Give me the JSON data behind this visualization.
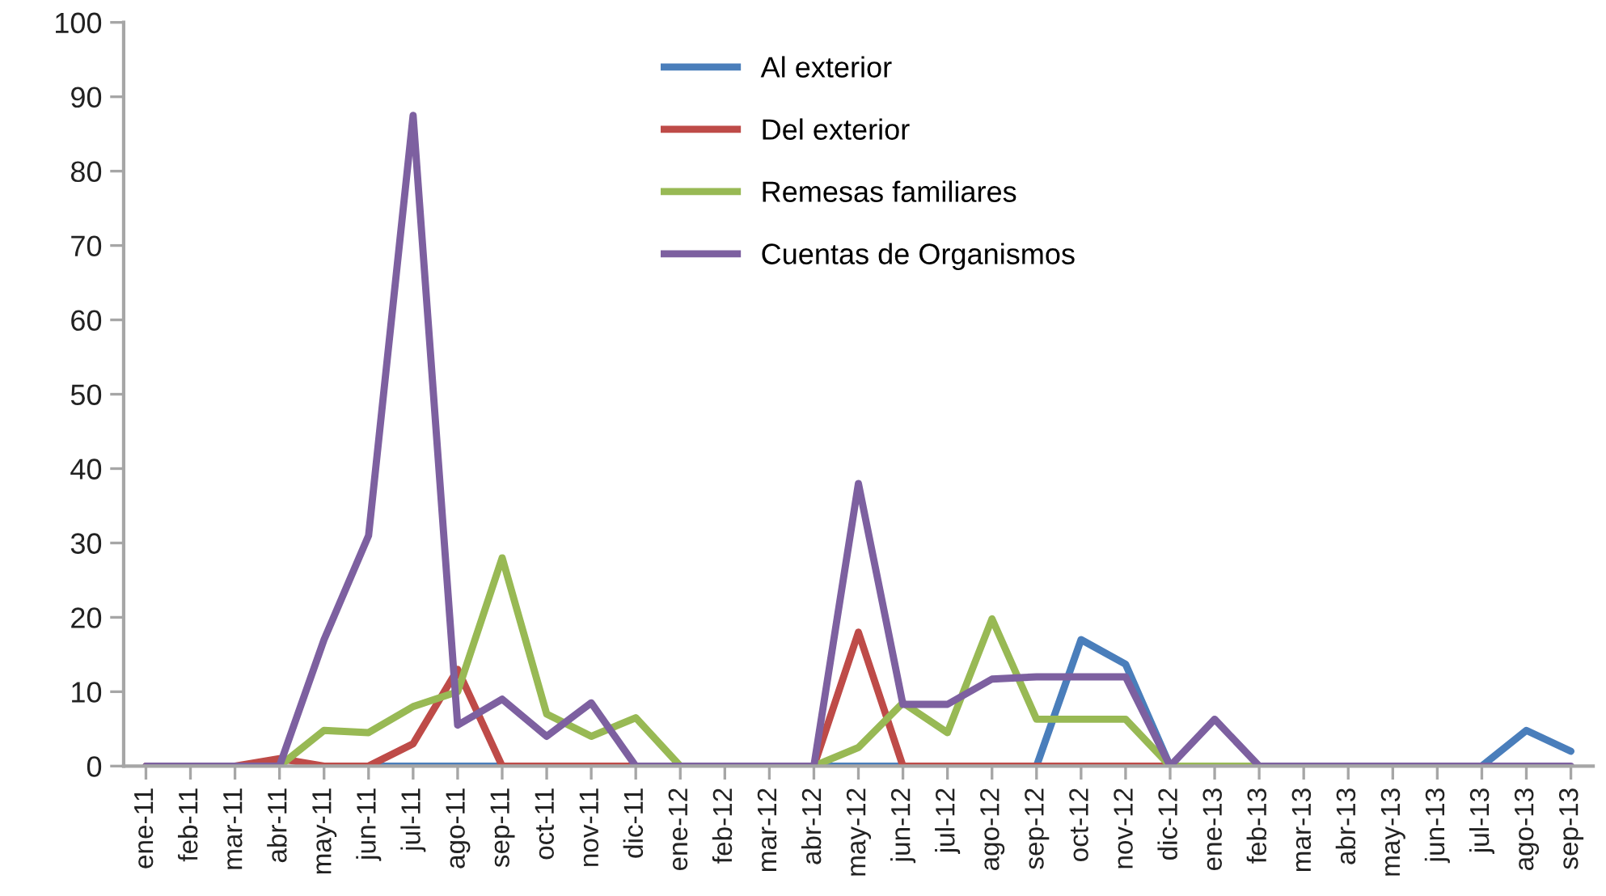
{
  "chart_data": {
    "type": "line",
    "categories": [
      "ene-11",
      "feb-11",
      "mar-11",
      "abr-11",
      "may-11",
      "jun-11",
      "jul-11",
      "ago-11",
      "sep-11",
      "oct-11",
      "nov-11",
      "dic-11",
      "ene-12",
      "feb-12",
      "mar-12",
      "abr-12",
      "may-12",
      "jun-12",
      "jul-12",
      "ago-12",
      "sep-12",
      "oct-12",
      "nov-12",
      "dic-12",
      "ene-13",
      "feb-13",
      "mar-13",
      "abr-13",
      "may-13",
      "jun-13",
      "jul-13",
      "ago-13",
      "sep-13"
    ],
    "series": [
      {
        "name": "Al exterior",
        "color": "#4a7ebb",
        "values": [
          null,
          null,
          null,
          null,
          null,
          0,
          0,
          0,
          0,
          null,
          null,
          null,
          null,
          null,
          null,
          0,
          0,
          0,
          null,
          null,
          0,
          17,
          13.7,
          0,
          null,
          null,
          null,
          null,
          null,
          null,
          0,
          4.8,
          2
        ]
      },
      {
        "name": "Del exterior",
        "color": "#be4b48",
        "values": [
          0,
          0,
          0,
          1,
          0,
          0,
          3,
          13,
          0,
          0,
          0,
          0,
          0,
          0,
          0,
          0,
          18,
          0,
          0,
          0,
          0,
          0,
          0,
          0,
          0,
          null,
          null,
          null,
          null,
          null,
          null,
          null,
          null
        ]
      },
      {
        "name": "Remesas familiares",
        "color": "#98b954",
        "values": [
          null,
          null,
          0,
          0,
          4.8,
          4.5,
          8,
          10,
          28,
          7,
          4,
          6.5,
          0,
          0,
          0,
          0,
          2.5,
          8.5,
          4.5,
          19.8,
          6.3,
          6.3,
          6.3,
          0,
          0,
          0,
          0,
          null,
          null,
          null,
          null,
          null,
          null
        ]
      },
      {
        "name": "Cuentas de Organismos",
        "color": "#7d60a0",
        "values": [
          0,
          0,
          0,
          0,
          17,
          31,
          87.5,
          5.5,
          9,
          4,
          8.5,
          0,
          0,
          0,
          0,
          0,
          38,
          8.3,
          8.3,
          11.7,
          12,
          12,
          12,
          0,
          6.3,
          0,
          0,
          0,
          0,
          0,
          0,
          0,
          0
        ]
      }
    ],
    "ylim": [
      0,
      100
    ],
    "yticks": [
      0,
      10,
      20,
      30,
      40,
      50,
      60,
      70,
      80,
      90,
      100
    ],
    "grid": false,
    "legend": "top",
    "marker": "none",
    "line_style": "solid"
  }
}
